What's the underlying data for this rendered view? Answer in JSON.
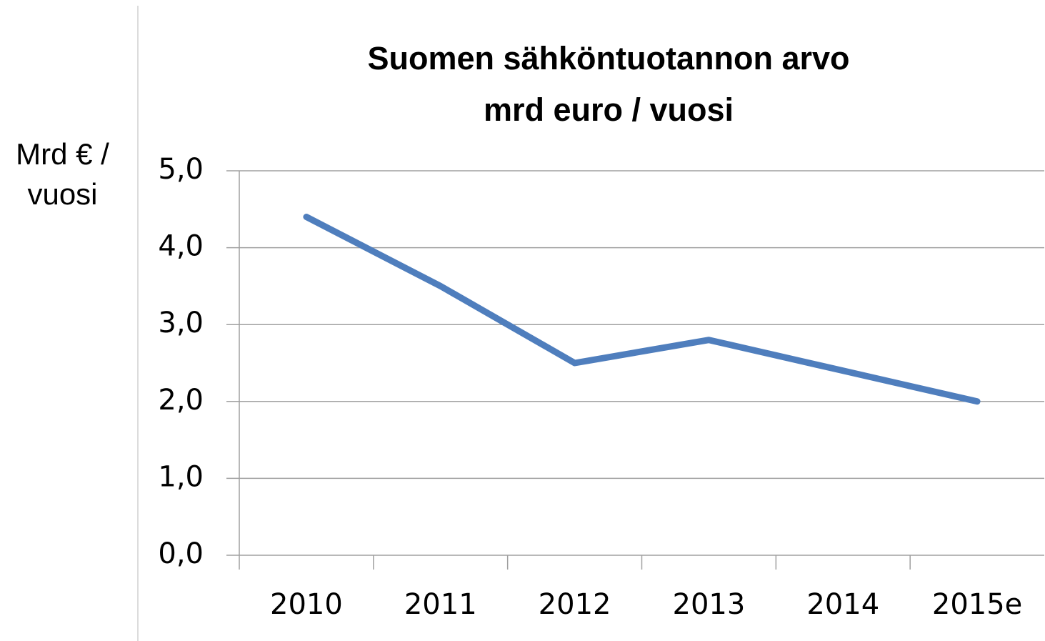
{
  "chart_data": {
    "type": "line",
    "title": "Suomen sähköntuotannon arvo mrd euro / vuosi",
    "ylabel": "Mrd € / vuosi",
    "categories": [
      "2010",
      "2011",
      "2012",
      "2013",
      "2014",
      "2015e"
    ],
    "values": [
      4.4,
      3.5,
      2.5,
      2.8,
      2.4,
      2.0
    ],
    "color": "#4f7ebd",
    "ylim": [
      0,
      5
    ],
    "yticks": [
      {
        "value": 0,
        "label": "0,0"
      },
      {
        "value": 1,
        "label": "1,0"
      },
      {
        "value": 2,
        "label": "2,0"
      },
      {
        "value": 3,
        "label": "3,0"
      },
      {
        "value": 4,
        "label": "4,0"
      },
      {
        "value": 5,
        "label": "5,0"
      }
    ],
    "grid": true
  }
}
